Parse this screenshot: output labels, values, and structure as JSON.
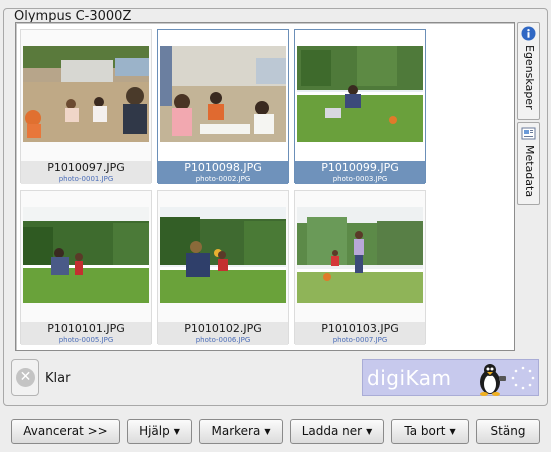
{
  "window": {
    "group_title": "Olympus C-3000Z"
  },
  "thumbnails": [
    {
      "filename": "P1010097.JPG",
      "tag": "photo-0001.JPG",
      "selected": false
    },
    {
      "filename": "P1010098.JPG",
      "tag": "photo-0002.JPG",
      "selected": true
    },
    {
      "filename": "P1010099.JPG",
      "tag": "photo-0003.JPG",
      "selected": true
    },
    {
      "filename": "P1010101.JPG",
      "tag": "photo-0005.JPG",
      "selected": false
    },
    {
      "filename": "P1010102.JPG",
      "tag": "photo-0006.JPG",
      "selected": false
    },
    {
      "filename": "P1010103.JPG",
      "tag": "photo-0007.JPG",
      "selected": false
    }
  ],
  "sidebar": {
    "tabs": [
      {
        "label": "Egenskaper",
        "icon": "info-icon"
      },
      {
        "label": "Metadata",
        "icon": "metadata-icon"
      }
    ]
  },
  "status": {
    "text": "Klar",
    "icon": "cancel-icon"
  },
  "banner": {
    "logo": "digiKam"
  },
  "buttons": {
    "advanced": "Avancerat >>",
    "help": "Hjälp",
    "select": "Markera",
    "download": "Ladda ner",
    "delete": "Ta bort",
    "close": "Stäng"
  },
  "colors": {
    "selection": "#6f92bb",
    "tag_text": "#4b6db8",
    "banner": "#c7c9ed"
  }
}
